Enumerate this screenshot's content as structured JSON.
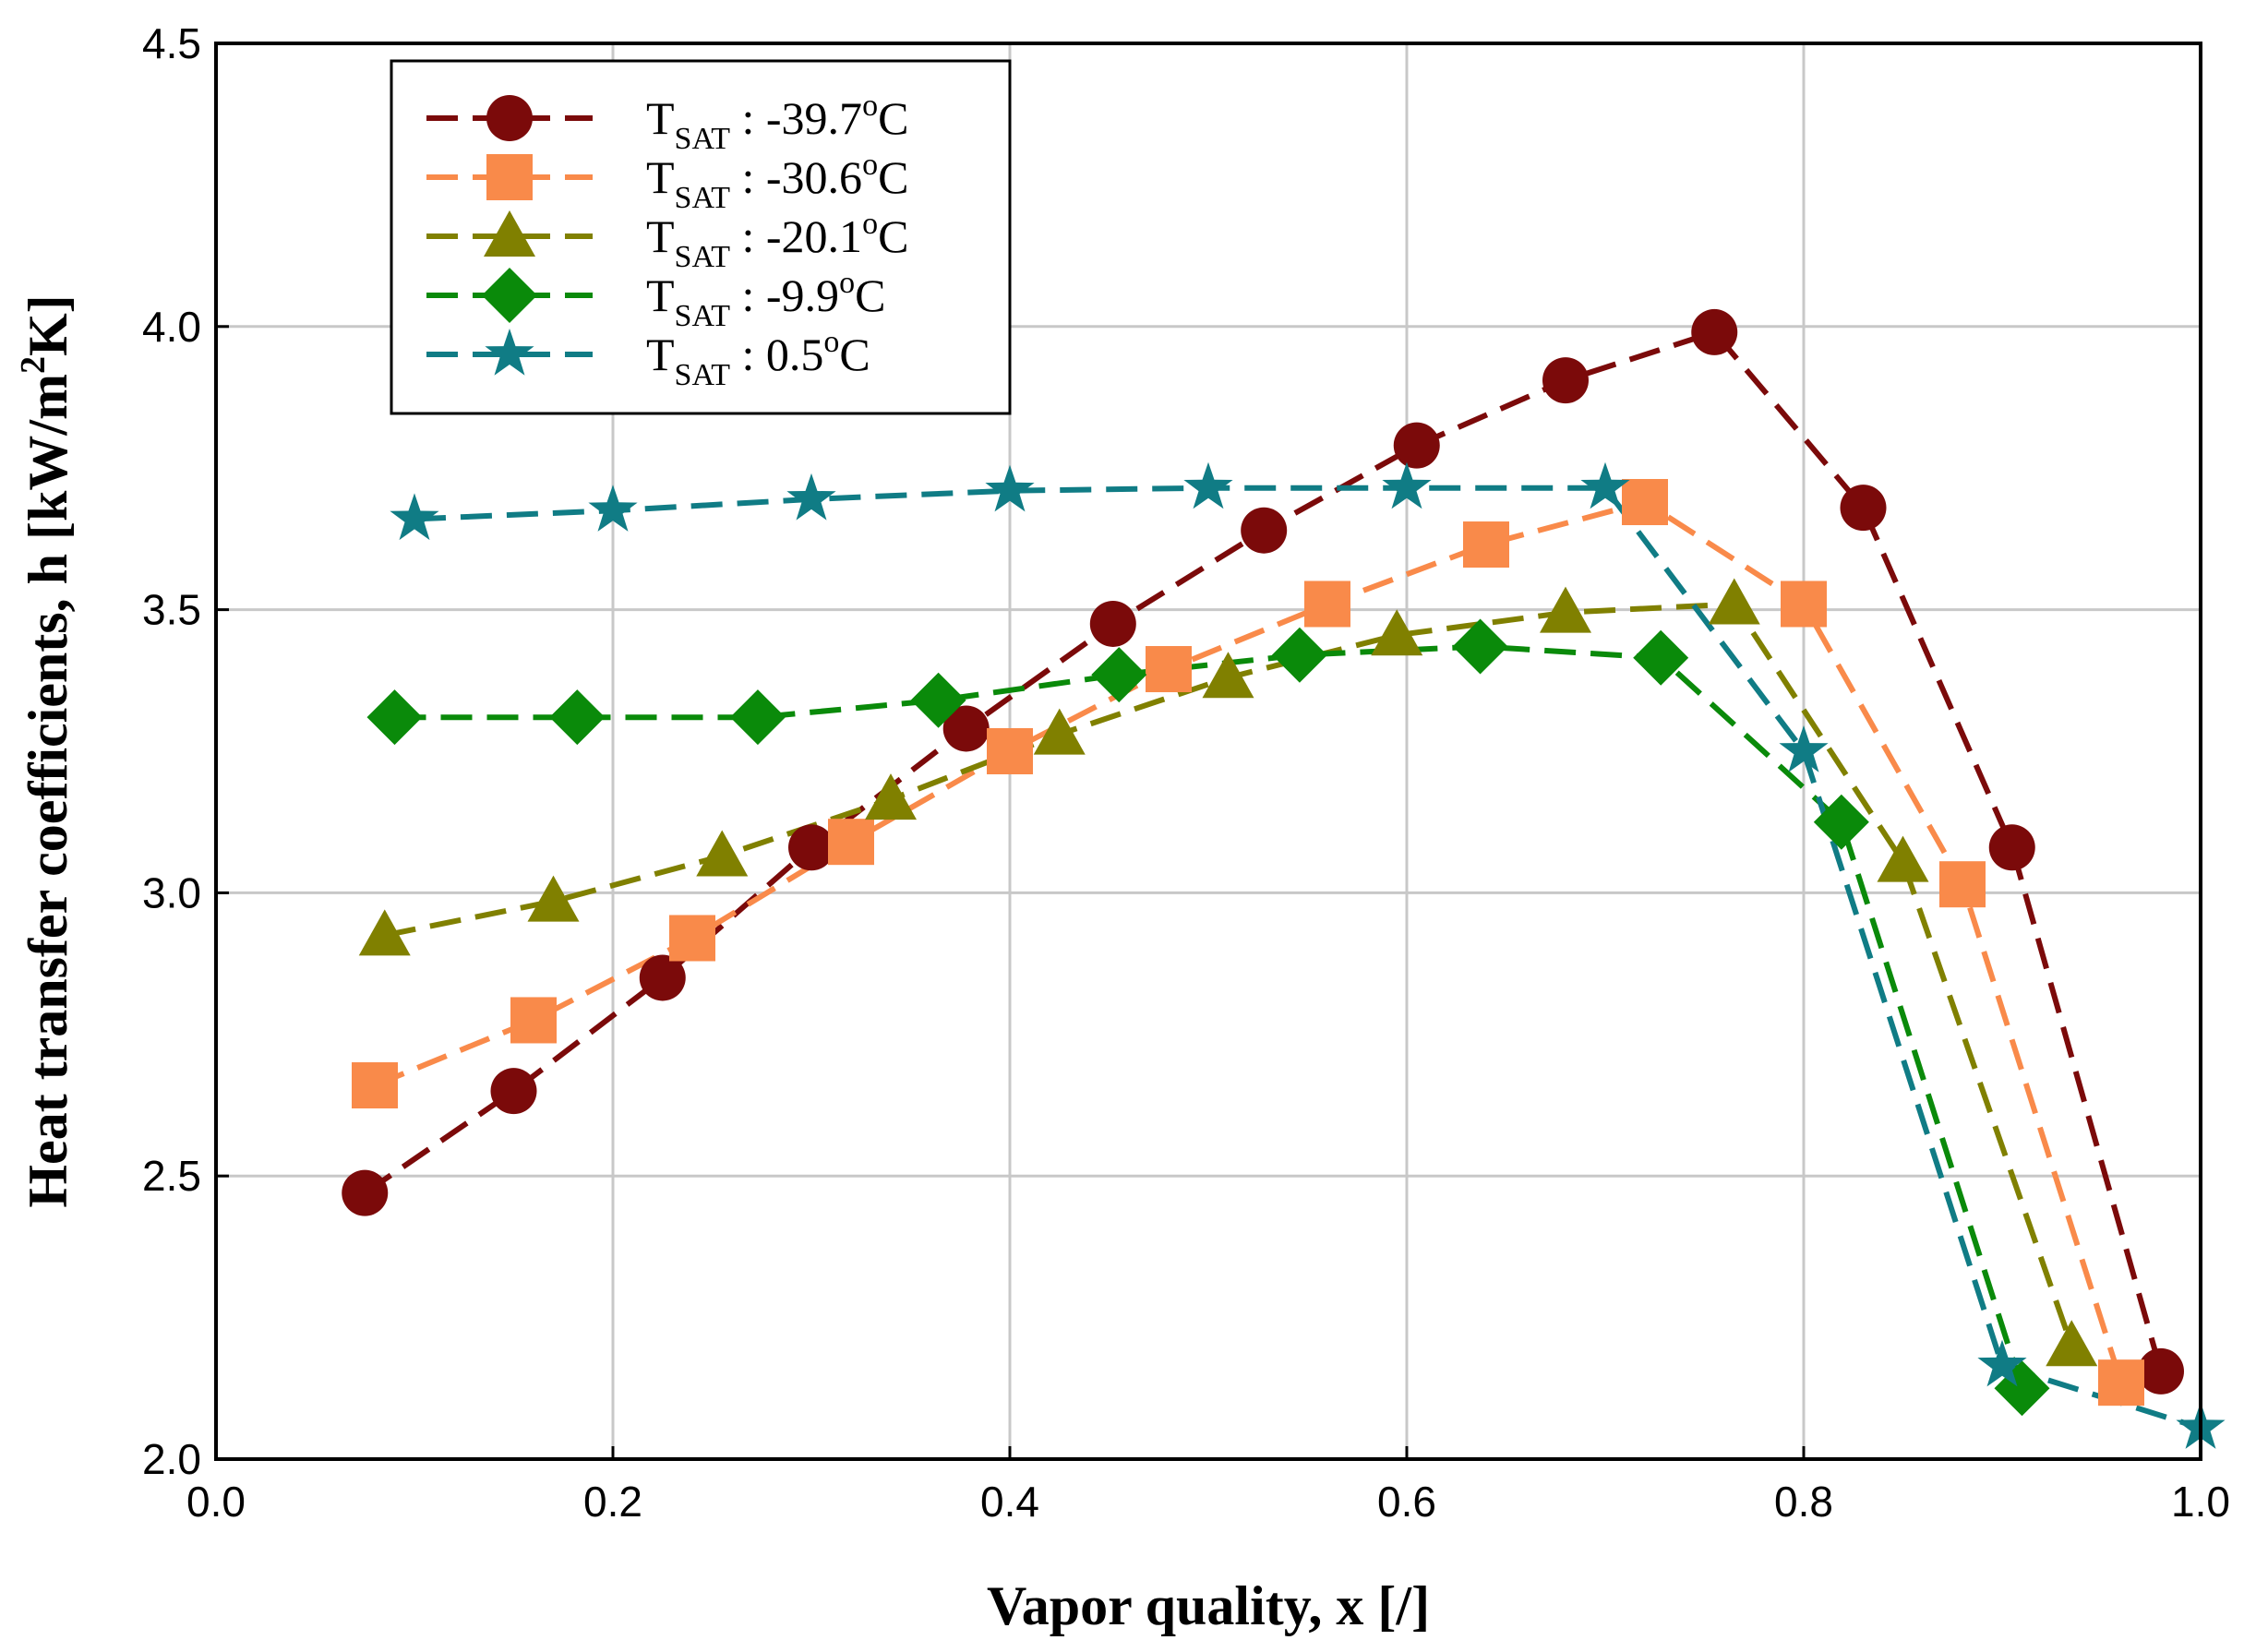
{
  "chart_data": {
    "type": "line",
    "xlabel": "Vapor quality, x [/]",
    "ylabel": {
      "text": "Heat transfer coefficients, h [kW/m",
      "superscript": "2",
      "suffix": "K]"
    },
    "xlim": [
      0.0,
      1.0
    ],
    "ylim": [
      2.0,
      4.5
    ],
    "xticks": [
      "0.0",
      "0.2",
      "0.4",
      "0.6",
      "0.8",
      "1.0"
    ],
    "yticks": [
      "2.0",
      "2.5",
      "3.0",
      "3.5",
      "4.0",
      "4.5"
    ],
    "grid": true,
    "legend_position": "top-left",
    "series": [
      {
        "name": "T_SAT : -39.7°C",
        "legend": {
          "base": "T",
          "sub": "SAT",
          "value": " : -39.7",
          "sup": "o",
          "unit": "C"
        },
        "color": "#7b0a0a",
        "marker": "circle",
        "x": [
          0.075,
          0.15,
          0.225,
          0.3,
          0.378,
          0.452,
          0.528,
          0.605,
          0.68,
          0.755,
          0.83,
          0.905,
          0.98
        ],
        "y": [
          2.47,
          2.65,
          2.85,
          3.08,
          3.29,
          3.475,
          3.64,
          3.79,
          3.905,
          3.99,
          3.68,
          3.08,
          2.155
        ]
      },
      {
        "name": "T_SAT : -30.6°C",
        "legend": {
          "base": "T",
          "sub": "SAT",
          "value": " : -30.6",
          "sup": "o",
          "unit": "C"
        },
        "color": "#f98a4a",
        "marker": "square",
        "x": [
          0.08,
          0.16,
          0.24,
          0.32,
          0.4,
          0.48,
          0.56,
          0.64,
          0.72,
          0.8,
          0.88,
          0.96
        ],
        "y": [
          2.66,
          2.775,
          2.92,
          3.09,
          3.25,
          3.395,
          3.51,
          3.615,
          3.69,
          3.51,
          3.015,
          2.135
        ]
      },
      {
        "name": "T_SAT : -20.1°C",
        "legend": {
          "base": "T",
          "sub": "SAT",
          "value": " : -20.1",
          "sup": "o",
          "unit": "C"
        },
        "color": "#808000",
        "marker": "triangle",
        "x": [
          0.085,
          0.17,
          0.255,
          0.34,
          0.425,
          0.51,
          0.595,
          0.68,
          0.765,
          0.85,
          0.935
        ],
        "y": [
          2.925,
          2.985,
          3.065,
          3.165,
          3.28,
          3.38,
          3.455,
          3.495,
          3.51,
          3.055,
          2.2
        ]
      },
      {
        "name": "T_SAT : -9.9°C",
        "legend": {
          "base": "T",
          "sub": "SAT",
          "value": " :   -9.9",
          "sup": "o",
          "unit": "C"
        },
        "color": "#0a8a0a",
        "marker": "diamond",
        "x": [
          0.09,
          0.182,
          0.273,
          0.364,
          0.455,
          0.546,
          0.637,
          0.728,
          0.819,
          0.91
        ],
        "y": [
          3.31,
          3.31,
          3.31,
          3.34,
          3.385,
          3.42,
          3.435,
          3.415,
          3.125,
          2.125
        ]
      },
      {
        "name": "T_SAT : 0.5°C",
        "legend": {
          "base": "T",
          "sub": "SAT",
          "value": " :    0.5",
          "sup": "o",
          "unit": "C"
        },
        "color": "#107c85",
        "marker": "star",
        "x": [
          0.1,
          0.2,
          0.3,
          0.4,
          0.5,
          0.6,
          0.7,
          0.8,
          0.9,
          1.0
        ],
        "y": [
          3.66,
          3.675,
          3.695,
          3.71,
          3.715,
          3.715,
          3.715,
          3.25,
          2.165,
          2.055
        ]
      }
    ]
  }
}
